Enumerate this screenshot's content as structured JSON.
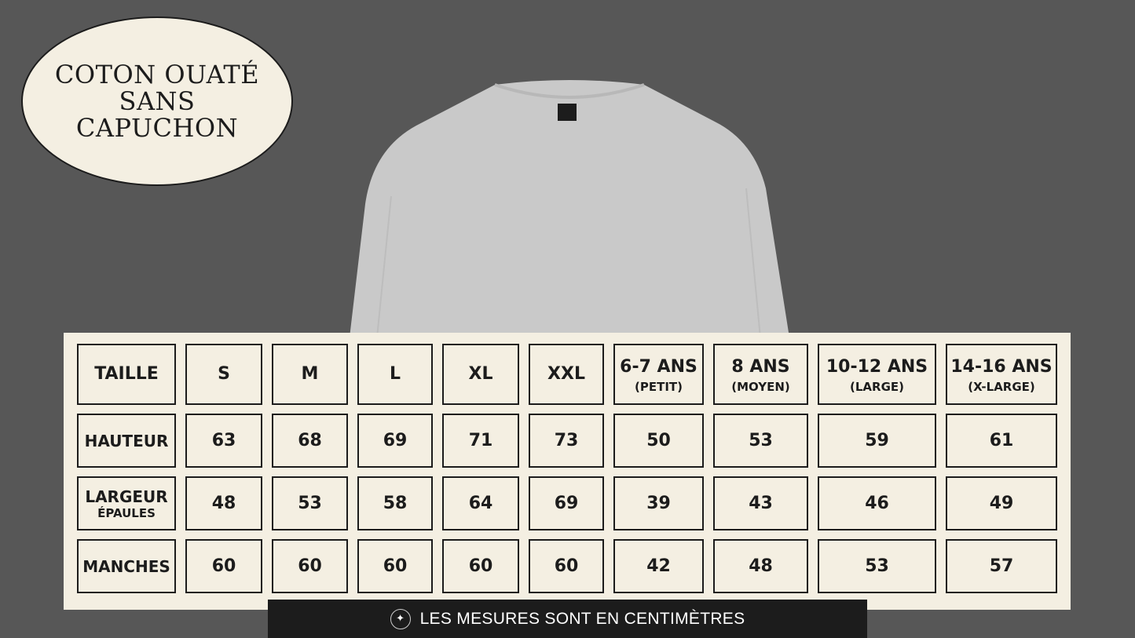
{
  "title": {
    "lines": [
      "COTON OUATÉ",
      "SANS",
      "CAPUCHON"
    ]
  },
  "table": {
    "header": [
      {
        "main": "TAILLE"
      },
      {
        "main": "S"
      },
      {
        "main": "M"
      },
      {
        "main": "L"
      },
      {
        "main": "XL"
      },
      {
        "main": "XXL"
      },
      {
        "main": "6-7 ANS",
        "sub": "(PETIT)"
      },
      {
        "main": "8 ANS",
        "sub": "(MOYEN)"
      },
      {
        "main": "10-12 ANS",
        "sub": "(LARGE)"
      },
      {
        "main": "14-16 ANS",
        "sub": "(X-LARGE)"
      }
    ],
    "rows": [
      {
        "label": "HAUTEUR",
        "values": [
          "63",
          "68",
          "69",
          "71",
          "73",
          "50",
          "53",
          "59",
          "61"
        ]
      },
      {
        "label": "LARGEUR",
        "sublabel": "ÉPAULES",
        "values": [
          "48",
          "53",
          "58",
          "64",
          "69",
          "39",
          "43",
          "46",
          "49"
        ]
      },
      {
        "label": "MANCHES",
        "values": [
          "60",
          "60",
          "60",
          "60",
          "60",
          "42",
          "48",
          "53",
          "57"
        ]
      }
    ]
  },
  "note": {
    "icon": "sparkle-icon",
    "text": "LES MESURES SONT EN CENTIMÈTRES"
  },
  "colors": {
    "background": "#575757",
    "panel": "#f4efe2",
    "ink": "#1c1c1c",
    "shirt": "#c8c8c8"
  }
}
